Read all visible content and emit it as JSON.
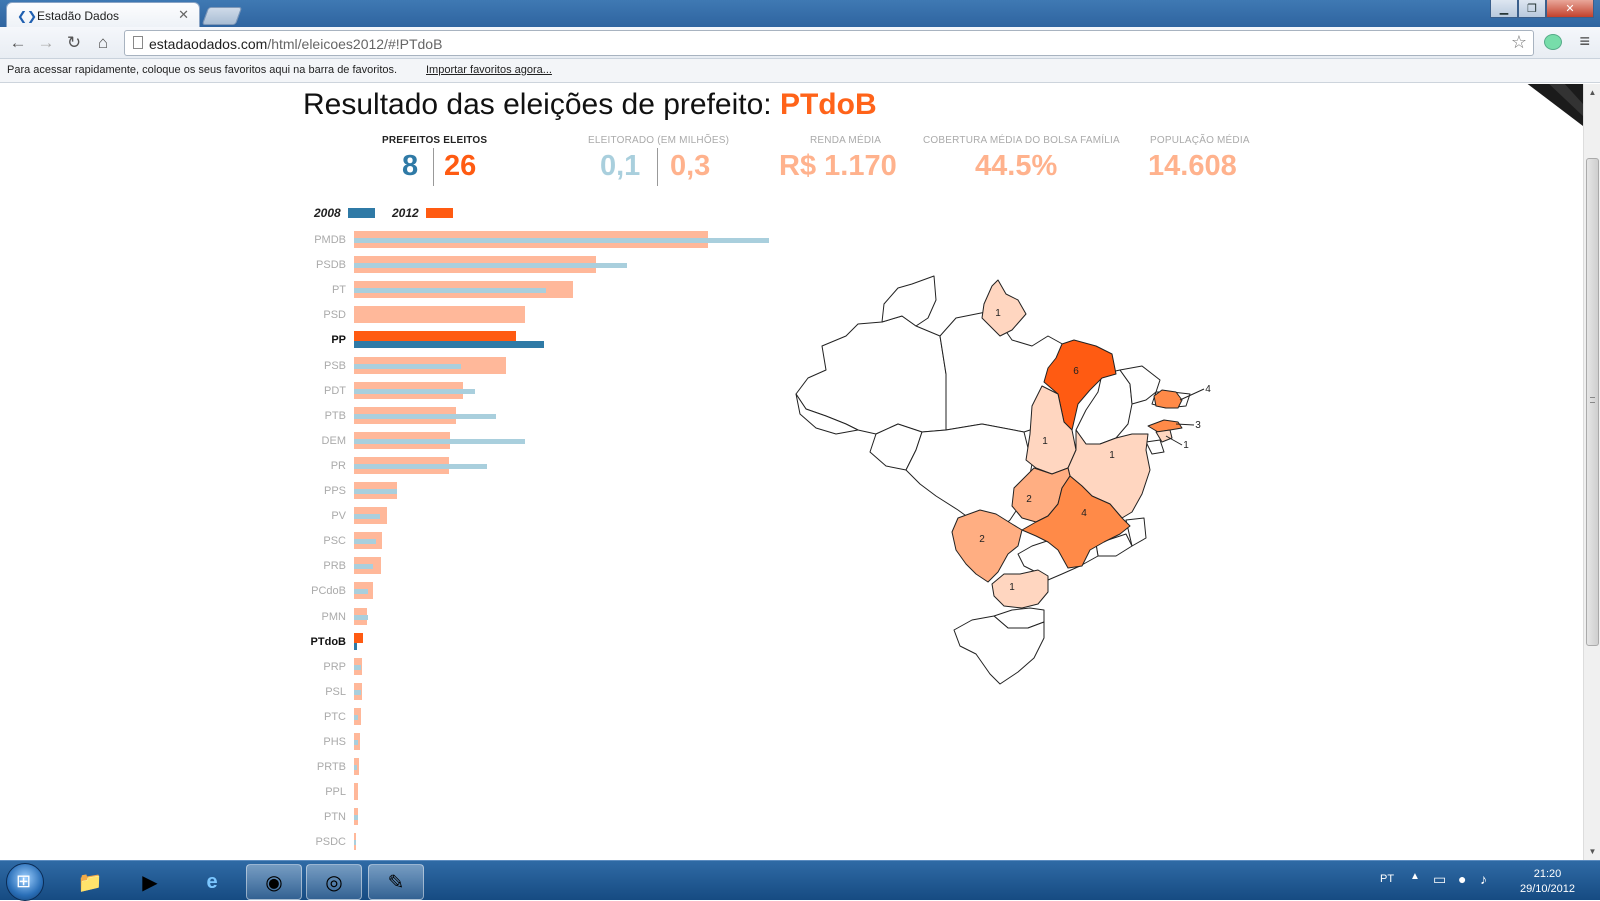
{
  "browser": {
    "tab_title": "Estadão Dados",
    "url_host": "estadaodados.com",
    "url_path": "/html/eleicoes2012/#!PTdoB",
    "bookmarks_message": "Para acessar rapidamente, coloque os seus favoritos aqui na barra de favoritos.",
    "bookmarks_link": "Importar favoritos agora..."
  },
  "page": {
    "title_prefix": "Resultado das eleições de prefeito: ",
    "party": "PTdoB",
    "colors": {
      "c2008": "#2f7aa6",
      "c2012": "#ff5b12",
      "c2008_light": "#a9cfdd",
      "c2012_light": "#ffb89a",
      "stat_light_blue": "#a9cfdd",
      "stat_light_orange": "#ffb28d"
    },
    "stats": {
      "prefeitos_label": "PREFEITOS ELEITOS",
      "prefeitos_2008": "8",
      "prefeitos_2012": "26",
      "eleitorado_label": "ELEITORADO (EM MILHÕES)",
      "eleitorado_2008": "0,1",
      "eleitorado_2012": "0,3",
      "renda_label": "RENDA MÉDIA",
      "renda_value": "R$ 1.170",
      "bolsa_label": "COBERTURA MÉDIA DO BOLSA FAMÍLIA",
      "bolsa_value": "44.5%",
      "populacao_label": "POPULAÇÃO MÉDIA",
      "populacao_value": "14.608"
    },
    "legend": {
      "y2008": "2008",
      "y2012": "2012"
    }
  },
  "chart_data": {
    "type": "bar",
    "orientation": "horizontal",
    "categories": [
      "PMDB",
      "PSDB",
      "PT",
      "PSD",
      "PP",
      "PSB",
      "PDT",
      "PTB",
      "DEM",
      "PR",
      "PPS",
      "PV",
      "PSC",
      "PRB",
      "PCdoB",
      "PMN",
      "PTdoB",
      "PRP",
      "PSL",
      "PTC",
      "PHS",
      "PRTB",
      "PPL",
      "PTN",
      "PSDC"
    ],
    "highlight": [
      "PP",
      "PTdoB"
    ],
    "series": [
      {
        "name": "2008",
        "values": [
          1201,
          790,
          557,
          0,
          551,
          310,
          350,
          410,
          495,
          385,
          125,
          75,
          65,
          55,
          41,
          40,
          8,
          19,
          20,
          13,
          12,
          10,
          0,
          11,
          5
        ]
      },
      {
        "name": "2012",
        "values": [
          1025,
          700,
          635,
          496,
          469,
          440,
          314,
          295,
          278,
          275,
          123,
          96,
          82,
          78,
          54,
          39,
          26,
          23,
          22,
          19,
          16,
          15,
          12,
          11,
          5
        ]
      }
    ],
    "xlim": [
      0,
      1201
    ]
  },
  "map_data": {
    "type": "choropleth",
    "states": [
      {
        "id": "RR",
        "value": "1"
      },
      {
        "id": "MA",
        "value": "6"
      },
      {
        "id": "TO",
        "value": "1"
      },
      {
        "id": "BA",
        "value": "1"
      },
      {
        "id": "RN",
        "value": "4"
      },
      {
        "id": "PE",
        "value": "3"
      },
      {
        "id": "AL",
        "value": "1"
      },
      {
        "id": "GO",
        "value": "2"
      },
      {
        "id": "MG",
        "value": "4"
      },
      {
        "id": "MS",
        "value": "2"
      },
      {
        "id": "PR",
        "value": "1"
      }
    ]
  }
}
